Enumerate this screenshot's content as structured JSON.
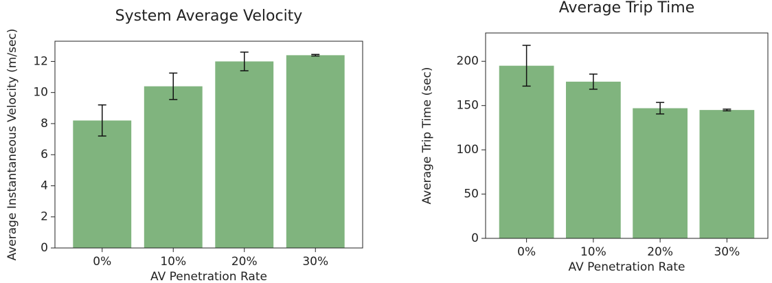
{
  "chart_data": [
    {
      "type": "bar",
      "title": "System Average Velocity",
      "xlabel": "AV Penetration Rate",
      "ylabel": "Average Instantaneous Velocity (m/sec)",
      "categories": [
        "0%",
        "10%",
        "20%",
        "30%"
      ],
      "values": [
        8.2,
        10.4,
        12.0,
        12.4
      ],
      "errors": [
        1.0,
        0.85,
        0.6,
        0.05
      ],
      "color": "#80b47e",
      "ylim": [
        0,
        13.3
      ],
      "yticks": [
        0,
        2,
        4,
        6,
        8,
        10,
        12
      ]
    },
    {
      "type": "bar",
      "title": "Average Trip Time",
      "xlabel": "AV Penetration Rate",
      "ylabel": "Average Trip Time (sec)",
      "categories": [
        "0%",
        "10%",
        "20%",
        "30%"
      ],
      "values": [
        195,
        177,
        147,
        145
      ],
      "errors": [
        23,
        8.5,
        6.5,
        1
      ],
      "color": "#80b47e",
      "ylim": [
        0,
        232
      ],
      "yticks": [
        0,
        50,
        100,
        150,
        200
      ]
    }
  ]
}
